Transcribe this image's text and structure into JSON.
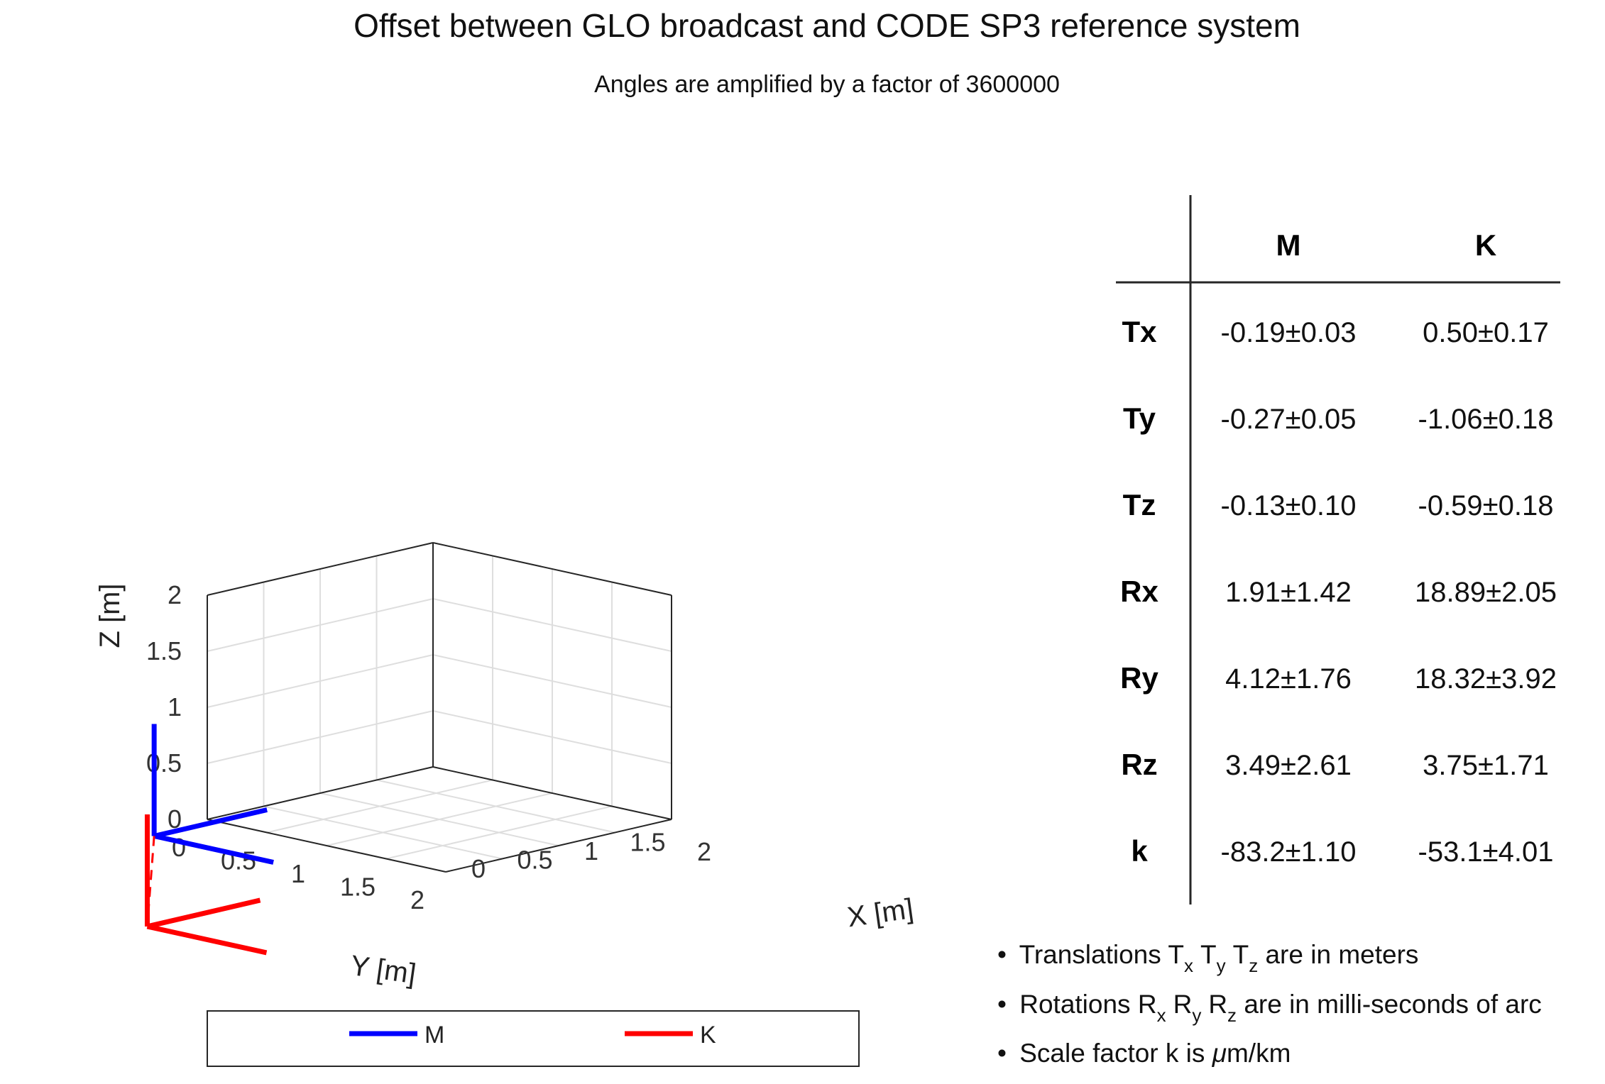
{
  "chart_data": {
    "type": "3d-line",
    "title": "Offset between GLO broadcast and CODE SP3 reference system",
    "subtitle": "Angles are amplified by a factor of 3600000",
    "xlabel": "X [m]",
    "ylabel": "Y [m]",
    "zlabel": "Z [m]",
    "xlim": [
      0,
      2
    ],
    "ylim": [
      0,
      2
    ],
    "zlim": [
      0,
      2
    ],
    "x_ticks": [
      "0",
      "0.5",
      "1",
      "1.5",
      "2"
    ],
    "y_ticks": [
      "0",
      "0.5",
      "1",
      "1.5",
      "2"
    ],
    "z_ticks": [
      "0",
      "0.5",
      "1",
      "1.5",
      "2"
    ],
    "grid": true,
    "legend_position": "bottom",
    "series": [
      {
        "name": "M",
        "color": "#0000ff",
        "origin": [
          -0.19,
          -0.27,
          -0.13
        ],
        "axes": [
          {
            "from": [
              -0.19,
              -0.27,
              -0.13
            ],
            "to": [
              0.81,
              -0.27,
              -0.13
            ]
          },
          {
            "from": [
              -0.19,
              -0.27,
              -0.13
            ],
            "to": [
              -0.19,
              0.73,
              -0.13
            ]
          },
          {
            "from": [
              -0.19,
              -0.27,
              -0.13
            ],
            "to": [
              -0.19,
              -0.27,
              0.87
            ]
          }
        ]
      },
      {
        "name": "K",
        "color": "#ff0000",
        "origin": [
          0.5,
          -1.06,
          -0.59
        ],
        "axes": [
          {
            "from": [
              0.5,
              -1.06,
              -0.59
            ],
            "to": [
              1.5,
              -1.06,
              -0.59
            ]
          },
          {
            "from": [
              0.5,
              -1.06,
              -0.59
            ],
            "to": [
              0.5,
              -0.06,
              -0.59
            ]
          },
          {
            "from": [
              0.5,
              -1.06,
              -0.59
            ],
            "to": [
              0.5,
              -1.06,
              0.41
            ]
          }
        ]
      }
    ],
    "offset_line": {
      "from_series": "M",
      "to_series": "K",
      "color": "#ff0000",
      "style": "dashed"
    }
  },
  "table": {
    "columns": [
      "M",
      "K"
    ],
    "rows": [
      {
        "label": "Tx",
        "M": "-0.19±0.03",
        "K": "0.50±0.17"
      },
      {
        "label": "Ty",
        "M": "-0.27±0.05",
        "K": "-1.06±0.18"
      },
      {
        "label": "Tz",
        "M": "-0.13±0.10",
        "K": "-0.59±0.18"
      },
      {
        "label": "Rx",
        "M": "1.91±1.42",
        "K": "18.89±2.05"
      },
      {
        "label": "Ry",
        "M": "4.12±1.76",
        "K": "18.32±3.92"
      },
      {
        "label": "Rz",
        "M": "3.49±2.61",
        "K": "3.75±1.71"
      },
      {
        "label": "k",
        "M": "-83.2±1.10",
        "K": "-53.1±4.01"
      }
    ]
  },
  "notes": {
    "bullet": "•",
    "translations": {
      "pre": "Translations ",
      "t": "T",
      "x": "x",
      "y": "y",
      "z": "z",
      "post": " are in meters"
    },
    "rotations": {
      "pre": "Rotations ",
      "r": "R",
      "x": "x",
      "y": "y",
      "z": "z",
      "post": " are in milli-seconds of arc"
    },
    "scale": {
      "pre": "Scale factor k is ",
      "mu": "μ",
      "post": "m/km"
    }
  }
}
